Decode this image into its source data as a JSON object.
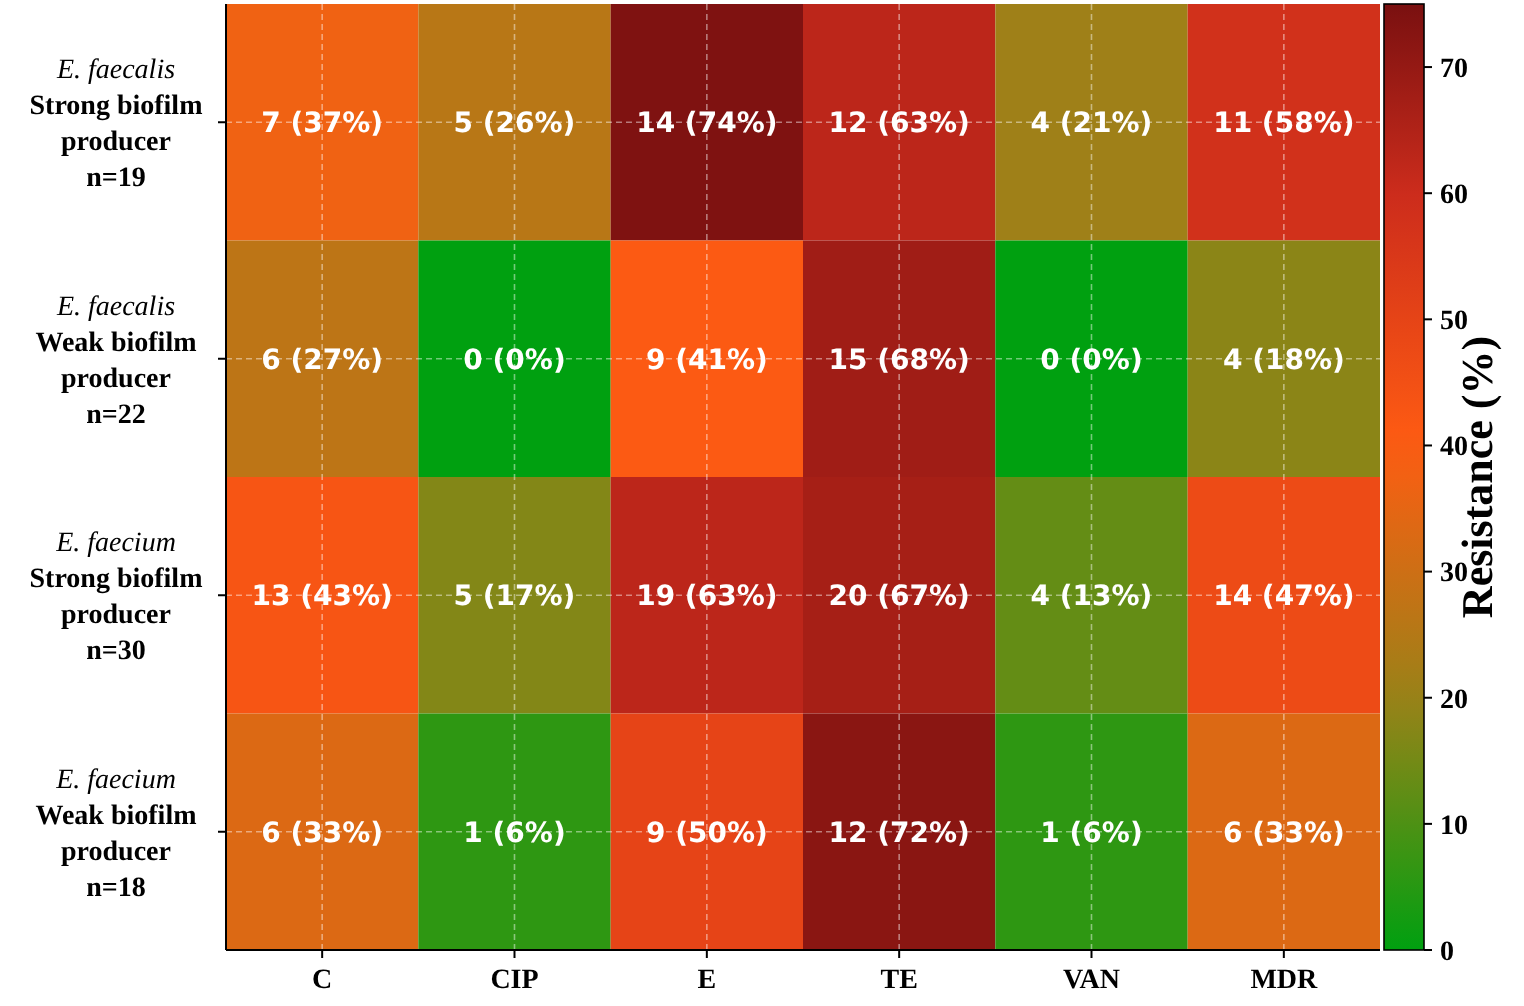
{
  "chart_data": {
    "type": "heatmap",
    "categories": [
      "C",
      "CIP",
      "E",
      "TE",
      "VAN",
      "MDR"
    ],
    "y_categories": [
      "E. faecalis\nStrong biofilm\nproducer\nn=19",
      "E. faecalis\nWeak biofilm\nproducer\nn=22",
      "E. faecium\nStrong biofilm\nproducer\nn=30",
      "E. faecium\nWeak biofilm\nproducer\nn=18"
    ],
    "cells": [
      [
        37,
        26,
        74,
        63,
        21,
        58
      ],
      [
        27,
        0,
        41,
        68,
        0,
        18
      ],
      [
        43,
        17,
        63,
        67,
        13,
        47
      ],
      [
        33,
        6,
        50,
        72,
        6,
        33
      ]
    ],
    "cell_labels": [
      [
        "7 (37%)",
        "5 (26%)",
        "14 (74%)",
        "12 (63%)",
        "4 (21%)",
        "11 (58%)"
      ],
      [
        "6 (27%)",
        "0 (0%)",
        "9 (41%)",
        "15 (68%)",
        "0 (0%)",
        "4 (18%)"
      ],
      [
        "13 (43%)",
        "5 (17%)",
        "19 (63%)",
        "20 (67%)",
        "4 (13%)",
        "14 (47%)"
      ],
      [
        "6 (33%)",
        "1 (6%)",
        "9 (50%)",
        "12 (72%)",
        "1 (6%)",
        "6 (33%)"
      ]
    ],
    "clim": [
      0,
      75
    ],
    "cticks": [
      0,
      10,
      20,
      30,
      40,
      50,
      60,
      70
    ],
    "clabel": "Resistance (%)",
    "grid": true
  }
}
